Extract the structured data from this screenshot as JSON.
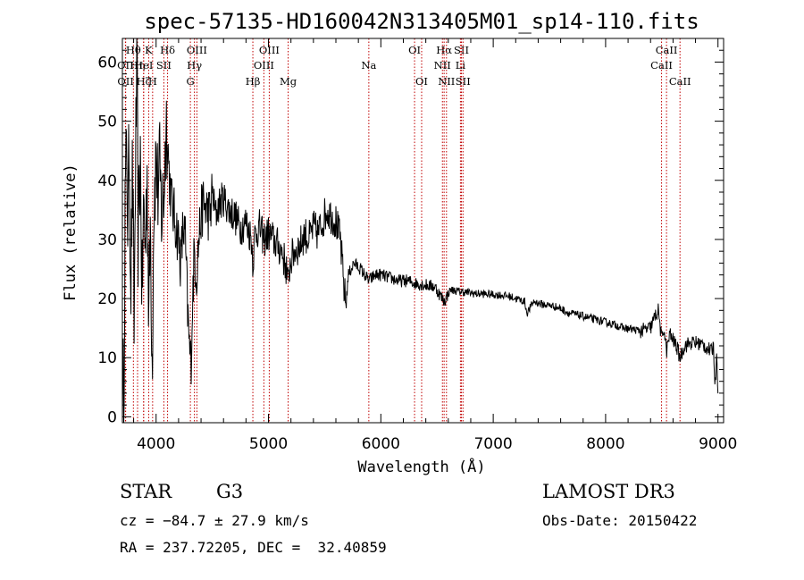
{
  "chart_data": {
    "type": "line",
    "title": "spec-57135-HD160042N313405M01_sp14-110.fits",
    "xlabel": "Wavelength (Å)",
    "ylabel": "Flux (relative)",
    "xlim": [
      3700,
      9050
    ],
    "ylim": [
      -1,
      64
    ],
    "xticks": [
      4000,
      5000,
      6000,
      7000,
      8000,
      9000
    ],
    "yticks": [
      0,
      10,
      20,
      30,
      40,
      50,
      60
    ],
    "series": [
      {
        "name": "flux",
        "anchors": [
          [
            3700,
            2
          ],
          [
            3715,
            8
          ],
          [
            3725,
            38
          ],
          [
            3740,
            45
          ],
          [
            3750,
            30
          ],
          [
            3760,
            48
          ],
          [
            3775,
            22
          ],
          [
            3790,
            42
          ],
          [
            3805,
            14
          ],
          [
            3815,
            40
          ],
          [
            3830,
            60
          ],
          [
            3840,
            30
          ],
          [
            3860,
            44
          ],
          [
            3875,
            20
          ],
          [
            3890,
            36
          ],
          [
            3905,
            28
          ],
          [
            3920,
            42
          ],
          [
            3935,
            16
          ],
          [
            3950,
            34
          ],
          [
            3965,
            8
          ],
          [
            3980,
            36
          ],
          [
            4000,
            44
          ],
          [
            4015,
            38
          ],
          [
            4030,
            42
          ],
          [
            4050,
            34
          ],
          [
            4070,
            38
          ],
          [
            4090,
            50
          ],
          [
            4105,
            46
          ],
          [
            4120,
            40
          ],
          [
            4140,
            36
          ],
          [
            4160,
            34
          ],
          [
            4180,
            32
          ],
          [
            4200,
            30
          ],
          [
            4220,
            26
          ],
          [
            4240,
            32
          ],
          [
            4260,
            30
          ],
          [
            4280,
            18
          ],
          [
            4295,
            12
          ],
          [
            4310,
            9
          ],
          [
            4325,
            20
          ],
          [
            4340,
            28
          ],
          [
            4360,
            24
          ],
          [
            4380,
            30
          ],
          [
            4400,
            34
          ],
          [
            4420,
            36
          ],
          [
            4450,
            35
          ],
          [
            4480,
            34
          ],
          [
            4500,
            38
          ],
          [
            4530,
            34
          ],
          [
            4560,
            36
          ],
          [
            4600,
            37
          ],
          [
            4650,
            35
          ],
          [
            4700,
            34
          ],
          [
            4750,
            32
          ],
          [
            4800,
            33
          ],
          [
            4850,
            30
          ],
          [
            4862,
            26
          ],
          [
            4880,
            31
          ],
          [
            4920,
            32
          ],
          [
            4960,
            30
          ],
          [
            5000,
            31
          ],
          [
            5040,
            30
          ],
          [
            5080,
            29
          ],
          [
            5120,
            28
          ],
          [
            5160,
            25
          ],
          [
            5175,
            22
          ],
          [
            5190,
            26
          ],
          [
            5230,
            28
          ],
          [
            5280,
            29
          ],
          [
            5320,
            31
          ],
          [
            5360,
            30
          ],
          [
            5400,
            32
          ],
          [
            5440,
            31
          ],
          [
            5480,
            33
          ],
          [
            5520,
            35
          ],
          [
            5560,
            34
          ],
          [
            5600,
            33
          ],
          [
            5640,
            30
          ],
          [
            5670,
            22
          ],
          [
            5690,
            19
          ],
          [
            5710,
            24
          ],
          [
            5760,
            26
          ],
          [
            5820,
            25
          ],
          [
            5893,
            23
          ],
          [
            5950,
            24
          ],
          [
            6000,
            24
          ],
          [
            6080,
            23.5
          ],
          [
            6160,
            23
          ],
          [
            6240,
            23
          ],
          [
            6320,
            22.5
          ],
          [
            6400,
            22.3
          ],
          [
            6480,
            22
          ],
          [
            6563,
            19.5
          ],
          [
            6620,
            21.5
          ],
          [
            6700,
            21.2
          ],
          [
            6780,
            21
          ],
          [
            6850,
            20.8
          ],
          [
            6900,
            20.8
          ],
          [
            6980,
            20.7
          ],
          [
            7060,
            20.6
          ],
          [
            7140,
            20.4
          ],
          [
            7200,
            20
          ],
          [
            7280,
            19.5
          ],
          [
            7300,
            17.5
          ],
          [
            7360,
            19.5
          ],
          [
            7440,
            19
          ],
          [
            7520,
            18.8
          ],
          [
            7600,
            18.3
          ],
          [
            7680,
            17.5
          ],
          [
            7760,
            17.2
          ],
          [
            7840,
            16.8
          ],
          [
            7920,
            16.4
          ],
          [
            8000,
            16
          ],
          [
            8080,
            15.6
          ],
          [
            8160,
            15
          ],
          [
            8240,
            14.8
          ],
          [
            8320,
            14.5
          ],
          [
            8400,
            15
          ],
          [
            8440,
            17
          ],
          [
            8470,
            18
          ],
          [
            8498,
            13
          ],
          [
            8520,
            15
          ],
          [
            8542,
            11
          ],
          [
            8570,
            14
          ],
          [
            8600,
            13
          ],
          [
            8630,
            12
          ],
          [
            8662,
            10
          ],
          [
            8700,
            12
          ],
          [
            8760,
            12.5
          ],
          [
            8820,
            12.5
          ],
          [
            8880,
            12
          ],
          [
            8940,
            11
          ],
          [
            8960,
            12
          ],
          [
            8975,
            5
          ],
          [
            8990,
            12
          ],
          [
            9000,
            3
          ]
        ]
      }
    ],
    "line_markers": [
      {
        "name": "Hθ",
        "wavelength": 3798,
        "row": 1
      },
      {
        "name": "OII",
        "wavelength": 3727,
        "row": 2
      },
      {
        "name": "OII",
        "wavelength": 3729,
        "row": 3
      },
      {
        "name": "Hη",
        "wavelength": 3835,
        "row": 2
      },
      {
        "name": "Hζ",
        "wavelength": 3889,
        "row": 3
      },
      {
        "name": "K",
        "wavelength": 3934,
        "row": 1
      },
      {
        "name": "HeI",
        "wavelength": 3889,
        "row": 2
      },
      {
        "name": "H",
        "wavelength": 3969,
        "row": 3
      },
      {
        "name": "Hδ",
        "wavelength": 4102,
        "row": 1
      },
      {
        "name": "SII",
        "wavelength": 4069,
        "row": 2
      },
      {
        "name": "OIII",
        "wavelength": 4363,
        "row": 1
      },
      {
        "name": "Hγ",
        "wavelength": 4341,
        "row": 2
      },
      {
        "name": "G",
        "wavelength": 4305,
        "row": 3
      },
      {
        "name": "Hβ",
        "wavelength": 4861,
        "row": 3
      },
      {
        "name": "OIII",
        "wavelength": 5007,
        "row": 1
      },
      {
        "name": "OIII",
        "wavelength": 4959,
        "row": 2
      },
      {
        "name": "Mg",
        "wavelength": 5175,
        "row": 3
      },
      {
        "name": "Na",
        "wavelength": 5893,
        "row": 2
      },
      {
        "name": "OI",
        "wavelength": 6300,
        "row": 1
      },
      {
        "name": "OI",
        "wavelength": 6363,
        "row": 3
      },
      {
        "name": "Hα",
        "wavelength": 6563,
        "row": 1
      },
      {
        "name": "NII",
        "wavelength": 6548,
        "row": 2
      },
      {
        "name": "NII",
        "wavelength": 6584,
        "row": 3
      },
      {
        "name": "SII",
        "wavelength": 6717,
        "row": 1
      },
      {
        "name": "Li",
        "wavelength": 6708,
        "row": 2
      },
      {
        "name": "SII",
        "wavelength": 6731,
        "row": 3
      },
      {
        "name": "CaII",
        "wavelength": 8542,
        "row": 1
      },
      {
        "name": "CaII",
        "wavelength": 8498,
        "row": 2
      },
      {
        "name": "CaII",
        "wavelength": 8662,
        "row": 3
      }
    ]
  },
  "info": {
    "class": "STAR",
    "subclass": "G3",
    "survey": "LAMOST DR3",
    "cz": "cz = −84.7 ± 27.9 km/s",
    "obs_date": "Obs-Date: 20150422",
    "coords": "RA = 237.72205, DEC =  32.40859"
  }
}
